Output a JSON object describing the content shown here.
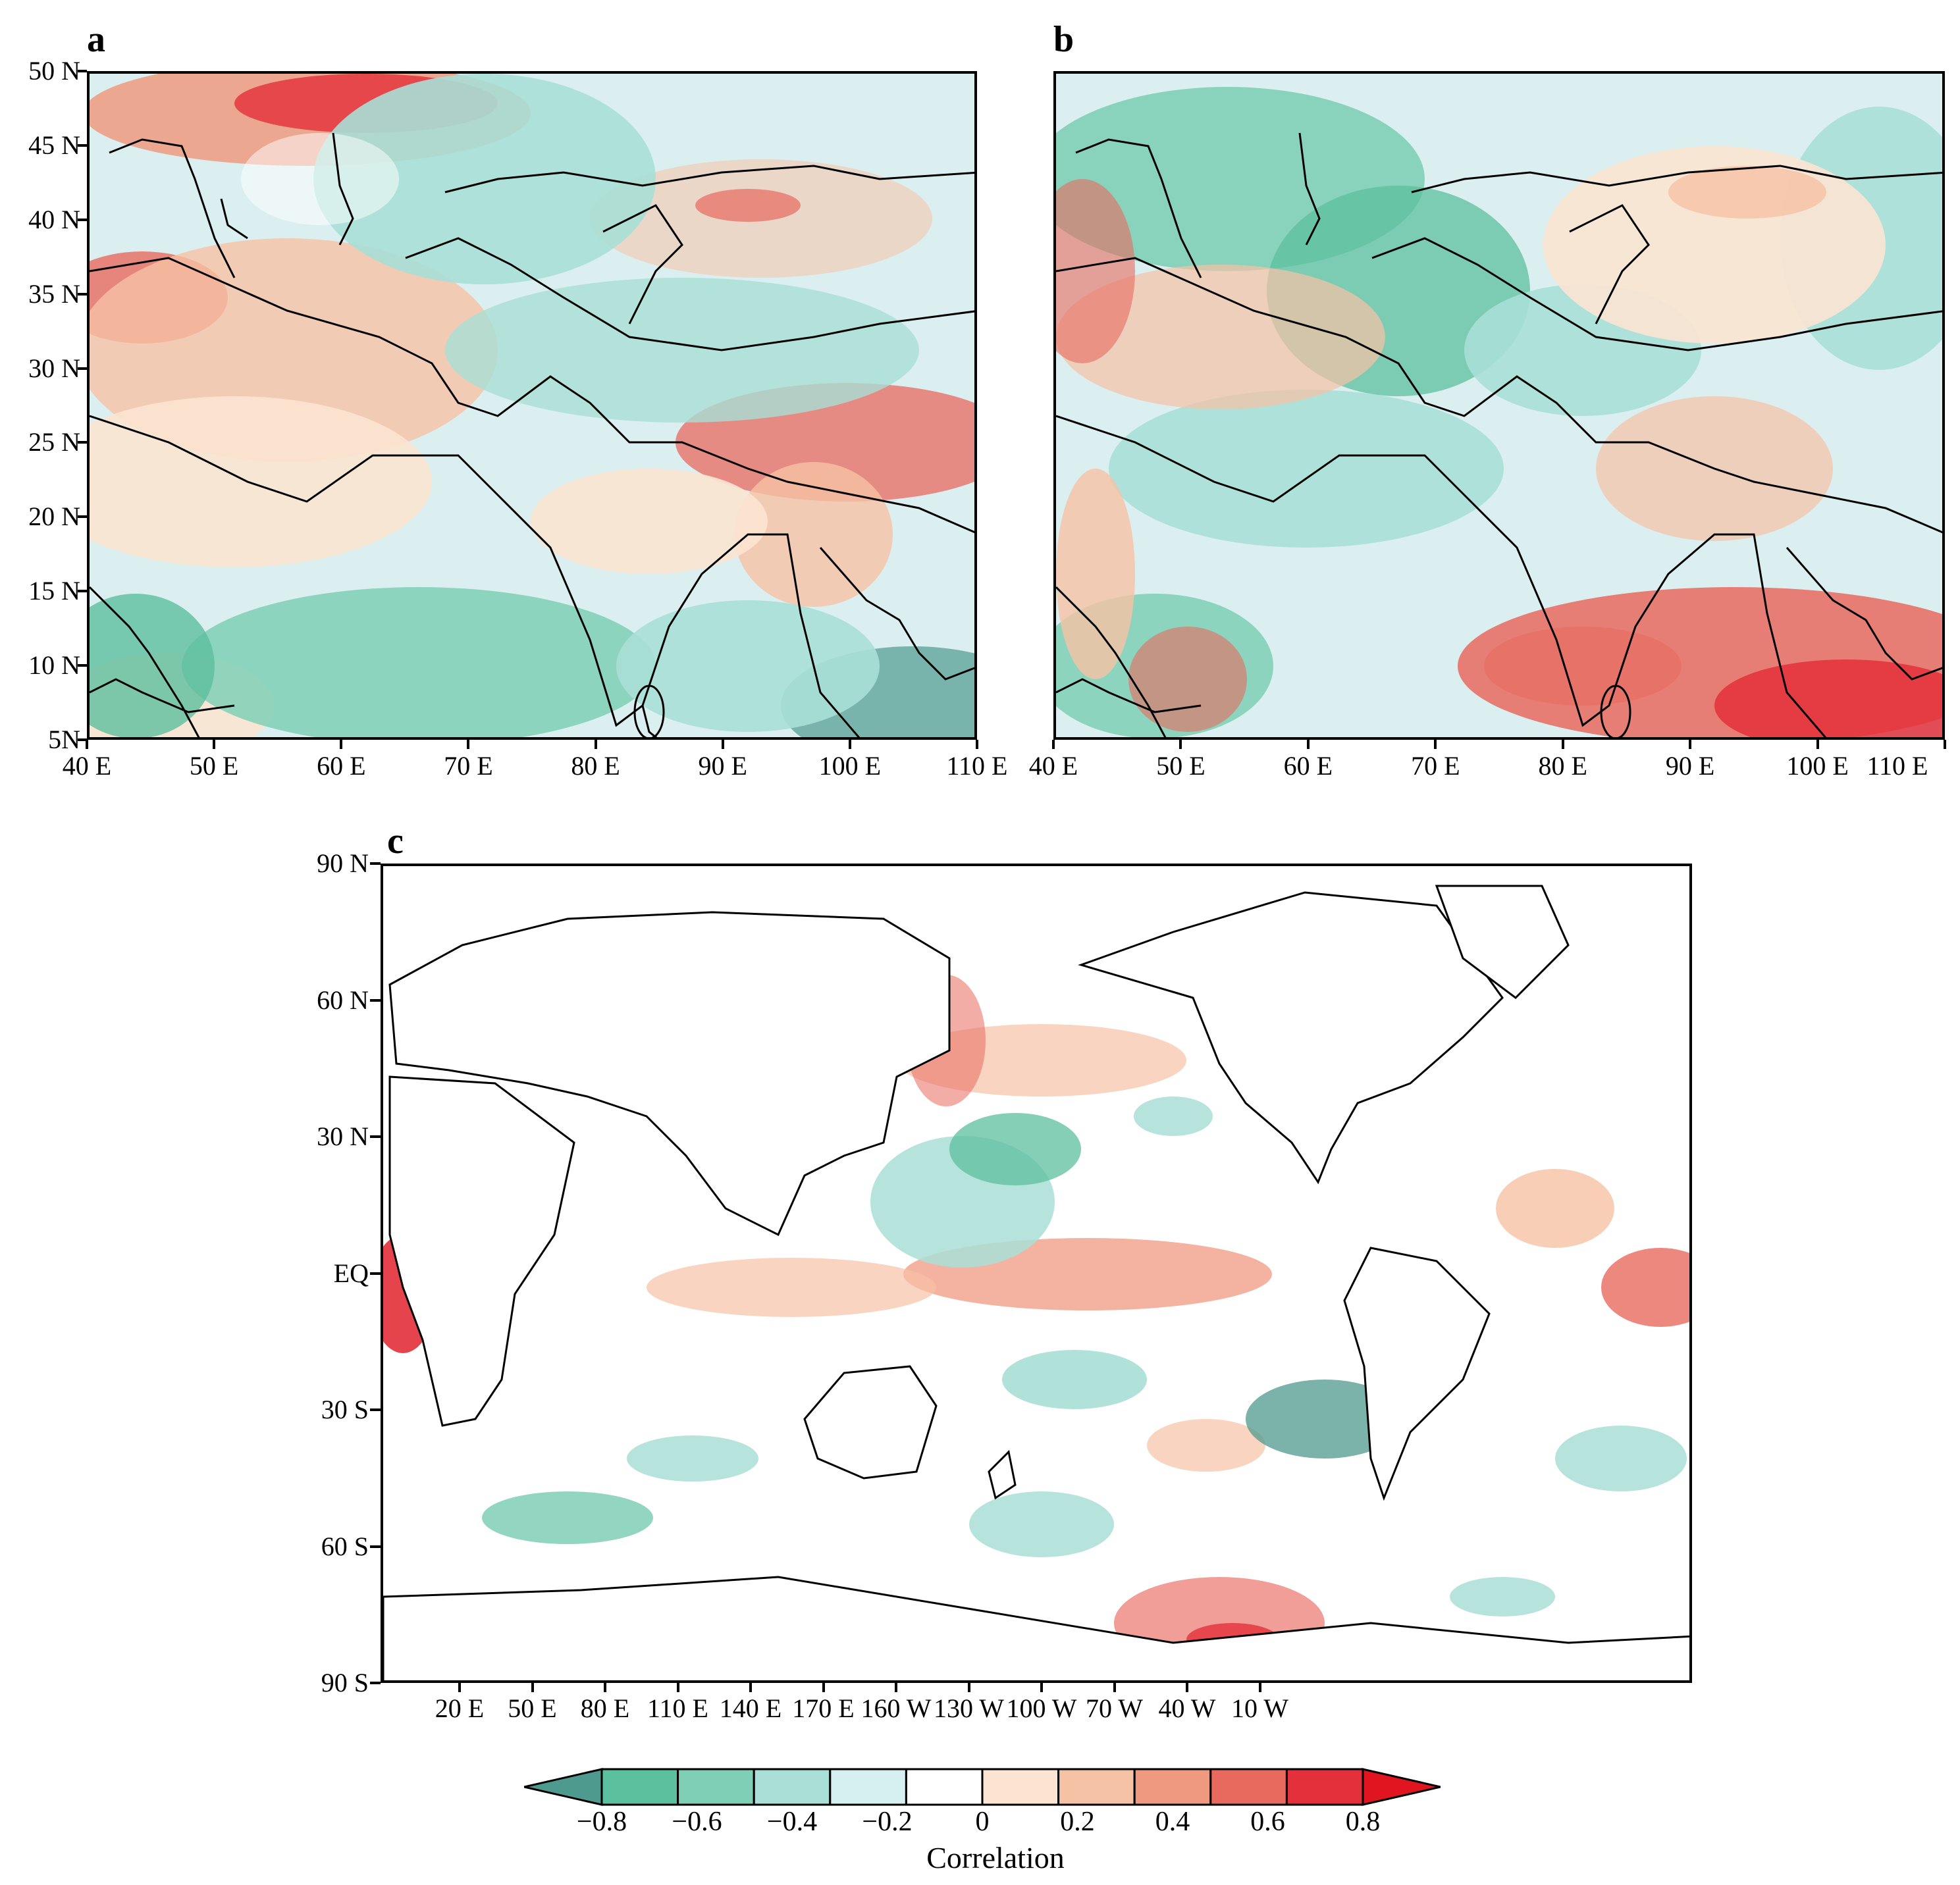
{
  "panels": {
    "a": {
      "letter": "a",
      "lat_labels": [
        "50 N",
        "45 N",
        "40 N",
        "35 N",
        "30 N",
        "25 N",
        "20 N",
        "15 N",
        "10 N",
        "5N"
      ],
      "lon_labels": [
        "40 E",
        "50 E",
        "60 E",
        "70 E",
        "80 E",
        "90 E",
        "100 E",
        "110 E"
      ]
    },
    "b": {
      "letter": "b",
      "lat_labels": [],
      "lon_labels": [
        "40 E",
        "50 E",
        "60 E",
        "70 E",
        "80 E",
        "90 E",
        "100 E",
        "110 E"
      ]
    },
    "c": {
      "letter": "c",
      "lat_labels": [
        "90 N",
        "60 N",
        "30 N",
        "EQ",
        "30 S",
        "60 S",
        "90 S"
      ],
      "lon_labels": [
        "20 E",
        "50 E",
        "80 E",
        "110 E",
        "140 E",
        "170 E",
        "160 W",
        "130 W",
        "100 W",
        "70 W",
        "40 W",
        "10 W"
      ]
    }
  },
  "colorbar": {
    "title": "Correlation",
    "labels": [
      "−0.8",
      "−0.6",
      "−0.4",
      "−0.2",
      "0",
      "0.2",
      "0.4",
      "0.6",
      "0.8"
    ],
    "colors": [
      "#4f9a8f",
      "#5cbf9e",
      "#7fcfb6",
      "#a9dfd6",
      "#d6eff0",
      "#ffffff",
      "#fbe4d2",
      "#f6c2a5",
      "#ef9a80",
      "#e86a5f",
      "#e3303a",
      "#e0151f"
    ]
  }
}
